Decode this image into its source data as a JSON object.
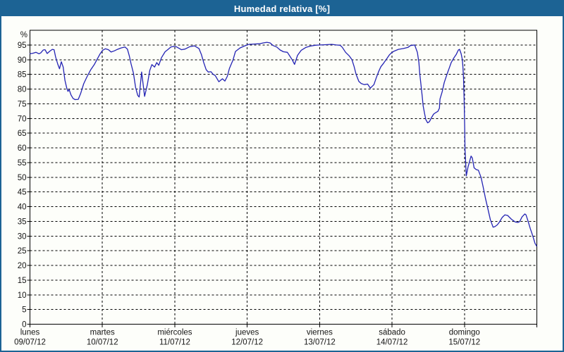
{
  "window": {
    "title": "Humedad relativa [%]",
    "title_bg": "#1c6394",
    "border_color": "#1c6394",
    "bg": "#fdfefa"
  },
  "chart_data": {
    "type": "line",
    "title": "Humedad relativa [%]",
    "ylabel": "%",
    "xlabel": "",
    "ylim": [
      0,
      100
    ],
    "y_ticks": [
      0,
      5,
      10,
      15,
      20,
      25,
      30,
      35,
      40,
      45,
      50,
      55,
      60,
      65,
      70,
      75,
      80,
      85,
      90,
      95
    ],
    "xlim_hours": [
      0,
      168
    ],
    "grid": "on-dashed",
    "legend_position": "none",
    "line_color": "#2323b4",
    "grid_color": "#000000",
    "axis_color": "#000000",
    "days": [
      {
        "t": 0,
        "day": "lunes",
        "date": "09/07/12"
      },
      {
        "t": 24,
        "day": "martes",
        "date": "10/07/12"
      },
      {
        "t": 48,
        "day": "miércoles",
        "date": "11/07/12"
      },
      {
        "t": 72,
        "day": "jueves",
        "date": "12/07/12"
      },
      {
        "t": 96,
        "day": "viernes",
        "date": "13/07/12"
      },
      {
        "t": 120,
        "day": "sábado",
        "date": "14/07/12"
      },
      {
        "t": 144,
        "day": "domingo",
        "date": "15/07/12"
      }
    ],
    "series": [
      {
        "name": "Humedad relativa",
        "points": [
          [
            0,
            92
          ],
          [
            1,
            92.2
          ],
          [
            2,
            92.5
          ],
          [
            3,
            92
          ],
          [
            3.6,
            92.3
          ],
          [
            4.4,
            93.3
          ],
          [
            5,
            93.4
          ],
          [
            5.7,
            92.1
          ],
          [
            6.6,
            92.9
          ],
          [
            7.4,
            93.5
          ],
          [
            8,
            93.4
          ],
          [
            8.5,
            90.9
          ],
          [
            9.2,
            88.5
          ],
          [
            9.8,
            86.9
          ],
          [
            10.4,
            89.3
          ],
          [
            11,
            87.5
          ],
          [
            11.6,
            83
          ],
          [
            12.2,
            80.3
          ],
          [
            12.6,
            79.2
          ],
          [
            13,
            79.8
          ],
          [
            13.6,
            78
          ],
          [
            14.3,
            76.8
          ],
          [
            15,
            76.4
          ],
          [
            16,
            76.5
          ],
          [
            16.8,
            78.5
          ],
          [
            17.8,
            81.8
          ],
          [
            18.9,
            84.2
          ],
          [
            20.1,
            86.5
          ],
          [
            21.3,
            88.3
          ],
          [
            22.3,
            90.2
          ],
          [
            23.2,
            91.9
          ],
          [
            24.1,
            93.2
          ],
          [
            25,
            93.7
          ],
          [
            26,
            93.4
          ],
          [
            26.9,
            92.6
          ],
          [
            28,
            93
          ],
          [
            29,
            93.5
          ],
          [
            30.2,
            94
          ],
          [
            31.5,
            94.3
          ],
          [
            32.3,
            93.6
          ],
          [
            32.9,
            91.4
          ],
          [
            33.5,
            88.6
          ],
          [
            34.3,
            85.4
          ],
          [
            35,
            80.6
          ],
          [
            35.7,
            77.9
          ],
          [
            36.2,
            77.3
          ],
          [
            37,
            85.8
          ],
          [
            38,
            77.5
          ],
          [
            38.9,
            81.5
          ],
          [
            39.7,
            86.3
          ],
          [
            40.4,
            88.3
          ],
          [
            41.3,
            87.5
          ],
          [
            42,
            89
          ],
          [
            42.7,
            88.1
          ],
          [
            43.6,
            90.7
          ],
          [
            44.8,
            92.7
          ],
          [
            45.9,
            93.6
          ],
          [
            46.7,
            94.3
          ],
          [
            47.5,
            94.5
          ],
          [
            48.5,
            94.4
          ],
          [
            50.2,
            93.4
          ],
          [
            51.4,
            93.6
          ],
          [
            52.9,
            94.4
          ],
          [
            54.5,
            94.7
          ],
          [
            56,
            93.8
          ],
          [
            56.8,
            91.8
          ],
          [
            57.6,
            89
          ],
          [
            58.4,
            86.6
          ],
          [
            59.1,
            85.8
          ],
          [
            60,
            85.9
          ],
          [
            60.7,
            85
          ],
          [
            61.4,
            84.6
          ],
          [
            62.6,
            82.5
          ],
          [
            63.8,
            83.5
          ],
          [
            64.6,
            82.7
          ],
          [
            65.4,
            84.3
          ],
          [
            66.1,
            87
          ],
          [
            67.3,
            89.9
          ],
          [
            68.1,
            92.8
          ],
          [
            69.6,
            94
          ],
          [
            71.2,
            94.7
          ],
          [
            72.5,
            95.2
          ],
          [
            74,
            95.3
          ],
          [
            76,
            95.4
          ],
          [
            77.3,
            95.7
          ],
          [
            78.5,
            95.9
          ],
          [
            79.6,
            95.7
          ],
          [
            80.6,
            94.8
          ],
          [
            81.8,
            94.3
          ],
          [
            82.9,
            93.3
          ],
          [
            84,
            92.7
          ],
          [
            85.3,
            92.5
          ],
          [
            85.9,
            91.6
          ],
          [
            86.9,
            90
          ],
          [
            87.7,
            88.4
          ],
          [
            88.7,
            91.5
          ],
          [
            89.9,
            93.2
          ],
          [
            91.5,
            94.2
          ],
          [
            92.9,
            94.6
          ],
          [
            94.5,
            94.9
          ],
          [
            96,
            95
          ],
          [
            98,
            95.1
          ],
          [
            100,
            95.2
          ],
          [
            101.6,
            95
          ],
          [
            102.8,
            94.9
          ],
          [
            103.5,
            94.2
          ],
          [
            104.6,
            92.5
          ],
          [
            105.8,
            91.3
          ],
          [
            106.7,
            90
          ],
          [
            107.4,
            87.8
          ],
          [
            108.1,
            85
          ],
          [
            109,
            82.6
          ],
          [
            109.8,
            81.9
          ],
          [
            110.8,
            81.5
          ],
          [
            111.9,
            81.7
          ],
          [
            112.8,
            80.3
          ],
          [
            114,
            81.5
          ],
          [
            114.8,
            83.9
          ],
          [
            115.6,
            86
          ],
          [
            116.3,
            87.6
          ],
          [
            117.2,
            88.8
          ],
          [
            118.3,
            90.4
          ],
          [
            119.1,
            91.6
          ],
          [
            119.8,
            92.3
          ],
          [
            120.7,
            92.9
          ],
          [
            122.1,
            93.5
          ],
          [
            123.8,
            93.8
          ],
          [
            125.3,
            94.2
          ],
          [
            126.1,
            94.8
          ],
          [
            127.5,
            95
          ],
          [
            128.4,
            92.5
          ],
          [
            128.9,
            89
          ],
          [
            129.2,
            85.2
          ],
          [
            129.6,
            81.3
          ],
          [
            130,
            77.5
          ],
          [
            130.3,
            74.3
          ],
          [
            130.8,
            71.6
          ],
          [
            131.2,
            69.6
          ],
          [
            131.8,
            68.5
          ],
          [
            132.4,
            68.9
          ],
          [
            133.1,
            70.3
          ],
          [
            133.8,
            71.5
          ],
          [
            134.5,
            72
          ],
          [
            135.2,
            72.4
          ],
          [
            135.7,
            73.5
          ],
          [
            135.9,
            76.6
          ],
          [
            136.6,
            79
          ],
          [
            137.3,
            82.2
          ],
          [
            138.2,
            85
          ],
          [
            138.9,
            87
          ],
          [
            139.6,
            89
          ],
          [
            140.5,
            90.6
          ],
          [
            141.3,
            91.8
          ],
          [
            142,
            93.3
          ],
          [
            142.4,
            93.5
          ],
          [
            142.9,
            92
          ],
          [
            143.3,
            90
          ],
          [
            143.5,
            87.6
          ],
          [
            143.7,
            83.6
          ],
          [
            143.9,
            76
          ],
          [
            144.1,
            66
          ],
          [
            144.2,
            59.5
          ],
          [
            144.4,
            55
          ],
          [
            144.6,
            50.5
          ],
          [
            145.2,
            53.5
          ],
          [
            146.2,
            57.2
          ],
          [
            146.6,
            56.6
          ],
          [
            147.2,
            53.2
          ],
          [
            147.9,
            52.6
          ],
          [
            148.6,
            52.4
          ],
          [
            149.5,
            50
          ],
          [
            150.2,
            46.7
          ],
          [
            151,
            42.7
          ],
          [
            151.8,
            39.1
          ],
          [
            152.6,
            35.5
          ],
          [
            153.5,
            33
          ],
          [
            154.1,
            33.2
          ],
          [
            154.9,
            33.8
          ],
          [
            155.5,
            34.6
          ],
          [
            156.5,
            36.3
          ],
          [
            157.4,
            37.2
          ],
          [
            158.3,
            37
          ],
          [
            159.6,
            35.7
          ],
          [
            160.8,
            34.8
          ],
          [
            161.7,
            34.6
          ],
          [
            162.3,
            34.9
          ],
          [
            163.1,
            36.5
          ],
          [
            164,
            37.5
          ],
          [
            164.4,
            37.2
          ],
          [
            165,
            35.3
          ],
          [
            165.8,
            32.6
          ],
          [
            166.6,
            30.2
          ],
          [
            167.4,
            27.5
          ],
          [
            167.9,
            26.6
          ]
        ]
      }
    ]
  }
}
